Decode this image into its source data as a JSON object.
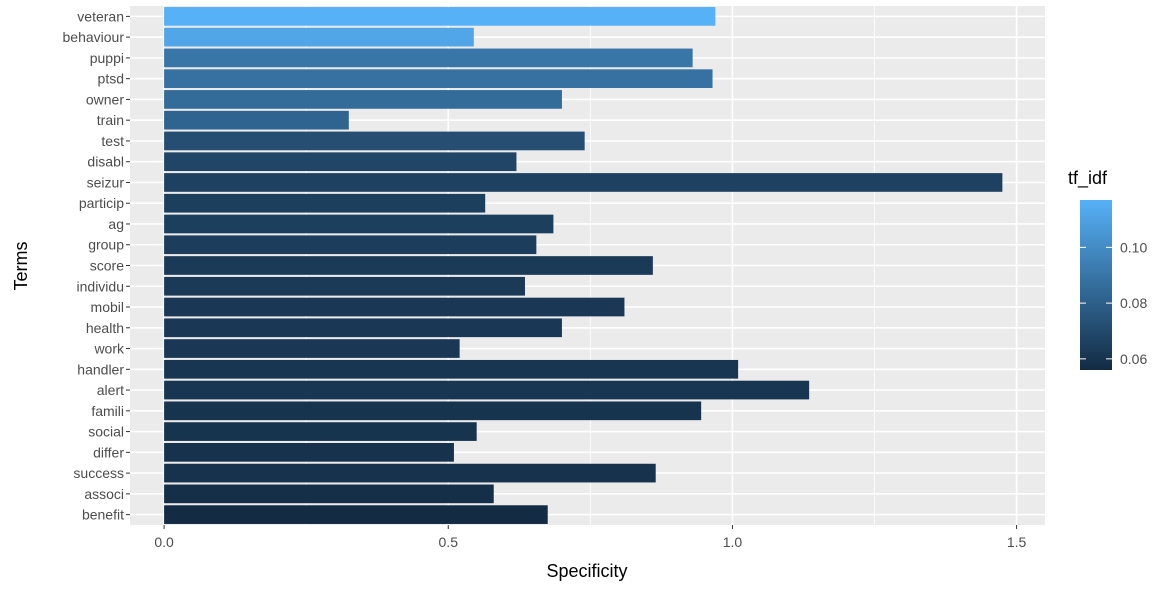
{
  "chart_data": {
    "type": "bar",
    "orientation": "horizontal",
    "xlabel": "Specificity",
    "ylabel": "Terms",
    "xlim": [
      -0.06,
      1.55
    ],
    "x_ticks": [
      0.0,
      0.5,
      1.0,
      1.5
    ],
    "x_tick_labels": [
      "0.0",
      "0.5",
      "1.0",
      "1.5"
    ],
    "grid": true,
    "legend": {
      "title": "tf_idf",
      "placement": "right",
      "range": [
        0.056,
        0.117
      ],
      "ticks": [
        0.06,
        0.08,
        0.1
      ],
      "tick_labels": [
        "0.06",
        "0.08",
        "0.10"
      ],
      "color_low": "#132B43",
      "color_high": "#56B1F7"
    },
    "categories": [
      "veteran",
      "behaviour",
      "puppi",
      "ptsd",
      "owner",
      "train",
      "test",
      "disabl",
      "seizur",
      "particip",
      "ag",
      "group",
      "score",
      "individu",
      "mobil",
      "health",
      "work",
      "handler",
      "alert",
      "famili",
      "social",
      "differ",
      "success",
      "associ",
      "benefit"
    ],
    "values": [
      0.97,
      0.545,
      0.93,
      0.965,
      0.7,
      0.325,
      0.74,
      0.62,
      1.475,
      0.565,
      0.685,
      0.655,
      0.86,
      0.635,
      0.81,
      0.7,
      0.52,
      1.01,
      1.135,
      0.945,
      0.55,
      0.51,
      0.865,
      0.58,
      0.675
    ],
    "tf_idf": [
      0.117,
      0.112,
      0.09,
      0.088,
      0.085,
      0.082,
      0.072,
      0.068,
      0.066,
      0.065,
      0.065,
      0.064,
      0.063,
      0.063,
      0.062,
      0.062,
      0.062,
      0.061,
      0.061,
      0.06,
      0.06,
      0.059,
      0.059,
      0.058,
      0.056
    ]
  }
}
